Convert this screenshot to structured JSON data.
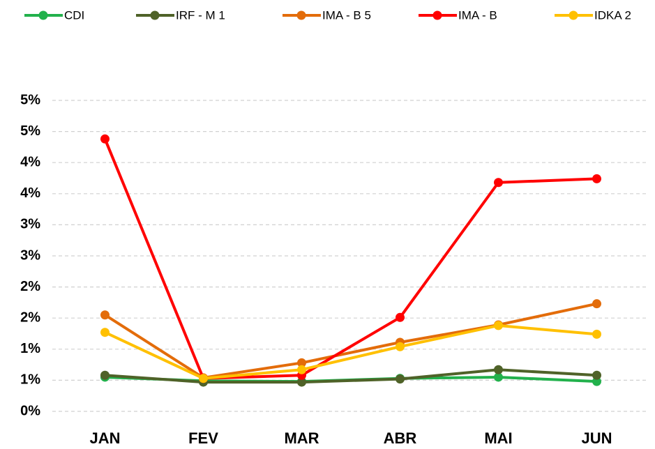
{
  "chart_data": {
    "type": "line",
    "categories": [
      "JAN",
      "FEV",
      "MAR",
      "ABR",
      "MAI",
      "JUN"
    ],
    "series": [
      {
        "name": "CDI",
        "color": "#22b14c",
        "values": [
          0.55,
          0.49,
          0.48,
          0.53,
          0.55,
          0.48
        ]
      },
      {
        "name": "IRF - M 1",
        "color": "#4f6228",
        "values": [
          0.58,
          0.47,
          0.47,
          0.52,
          0.67,
          0.58
        ]
      },
      {
        "name": "IMA - B 5",
        "color": "#e36c0a",
        "values": [
          1.55,
          0.54,
          0.78,
          1.11,
          1.39,
          1.73
        ]
      },
      {
        "name": "IMA - B",
        "color": "#ff0000",
        "values": [
          4.38,
          0.53,
          0.58,
          1.51,
          3.68,
          3.74
        ]
      },
      {
        "name": "IDKA 2",
        "color": "#ffc000",
        "values": [
          1.27,
          0.53,
          0.67,
          1.04,
          1.38,
          1.24
        ]
      }
    ],
    "ylim": [
      0,
      5
    ],
    "yticks": [
      {
        "value": 0,
        "label": "0%"
      },
      {
        "value": 0.5,
        "label": "1%"
      },
      {
        "value": 1,
        "label": "1%"
      },
      {
        "value": 1.5,
        "label": "2%"
      },
      {
        "value": 2,
        "label": "2%"
      },
      {
        "value": 2.5,
        "label": "3%"
      },
      {
        "value": 3,
        "label": "3%"
      },
      {
        "value": 3.5,
        "label": "4%"
      },
      {
        "value": 4,
        "label": "4%"
      },
      {
        "value": 4.5,
        "label": "5%"
      },
      {
        "value": 5,
        "label": "5%"
      }
    ],
    "grid": true,
    "legend": "top"
  }
}
